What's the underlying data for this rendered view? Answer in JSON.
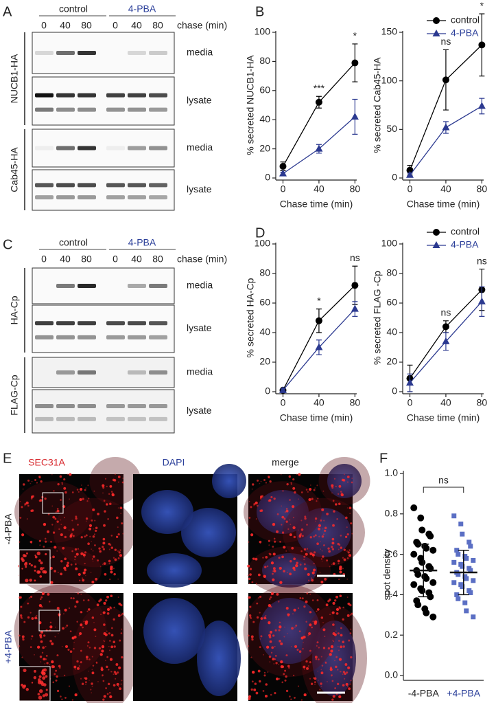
{
  "figure": {
    "panel_letters": [
      "A",
      "B",
      "C",
      "D",
      "E",
      "F"
    ]
  },
  "blots": [
    {
      "conditions": [
        "control",
        "4-PBA"
      ],
      "timepoints": [
        "0",
        "40",
        "80",
        "0",
        "40",
        "80"
      ],
      "time_label": "chase (min)",
      "proteins": [
        {
          "name": "NUCB1-HA",
          "rows": [
            "media",
            "lysate"
          ]
        },
        {
          "name": "Cab45-HA",
          "rows": [
            "media",
            "lysate"
          ]
        }
      ]
    },
    {
      "conditions": [
        "control",
        "4-PBA"
      ],
      "timepoints": [
        "0",
        "40",
        "80",
        "0",
        "40",
        "80"
      ],
      "time_label": "chase (min)",
      "proteins": [
        {
          "name": "HA-Cp",
          "rows": [
            "media",
            "lysate"
          ]
        },
        {
          "name": "FLAG-Cp",
          "rows": [
            "media",
            "lysate"
          ]
        }
      ]
    }
  ],
  "microscopy": {
    "channels": [
      "SEC31A",
      "DAPI",
      "merge"
    ],
    "conditions": [
      "-4-PBA",
      "+4-PBA"
    ]
  },
  "chart_data": [
    {
      "type": "line",
      "ylabel": "% secreted NUCB1-HA",
      "xlabel": "Chase time (min)",
      "x": [
        0,
        40,
        80
      ],
      "xlim": [
        -8,
        82
      ],
      "xticks": [
        0,
        40,
        80
      ],
      "ylim": [
        0,
        100
      ],
      "yticks": [
        0,
        20,
        40,
        60,
        80,
        100
      ],
      "series": [
        {
          "color": "#000000",
          "marker": "circle",
          "values": [
            8,
            52,
            79
          ],
          "errors": [
            3,
            4,
            13
          ]
        },
        {
          "color": "#2b3990",
          "marker": "triangle",
          "values": [
            3,
            20,
            42
          ],
          "errors": [
            1,
            3,
            12
          ]
        }
      ],
      "annotations": [
        {
          "x": 40,
          "text": "***"
        },
        {
          "x": 80,
          "text": "*"
        }
      ]
    },
    {
      "type": "line",
      "ylabel": "% secreted Cab45-HA",
      "xlabel": "Chase time (min)",
      "x": [
        0,
        40,
        80
      ],
      "xlim": [
        -8,
        82
      ],
      "xticks": [
        0,
        40,
        80
      ],
      "ylim": [
        0,
        150
      ],
      "yticks": [
        0,
        50,
        100,
        150
      ],
      "legend": "top-right",
      "series": [
        {
          "name": "control",
          "color": "#000000",
          "marker": "circle",
          "values": [
            8,
            101,
            137
          ],
          "errors": [
            5,
            31,
            32
          ]
        },
        {
          "name": "4-PBA",
          "color": "#2b3990",
          "marker": "triangle",
          "values": [
            3,
            52,
            74
          ],
          "errors": [
            2,
            6,
            8
          ]
        }
      ],
      "annotations": [
        {
          "x": 40,
          "text": "ns"
        },
        {
          "x": 80,
          "text": "*"
        }
      ]
    },
    {
      "type": "line",
      "ylabel": "% secreted HA-Cp",
      "xlabel": "Chase time (min)",
      "x": [
        0,
        40,
        80
      ],
      "xlim": [
        -8,
        82
      ],
      "xticks": [
        0,
        40,
        80
      ],
      "ylim": [
        0,
        100
      ],
      "yticks": [
        0,
        20,
        40,
        60,
        80,
        100
      ],
      "series": [
        {
          "color": "#000000",
          "marker": "circle",
          "values": [
            1,
            48,
            72
          ],
          "errors": [
            1,
            8,
            13
          ]
        },
        {
          "color": "#2b3990",
          "marker": "triangle",
          "values": [
            1,
            30,
            56
          ],
          "errors": [
            1,
            5,
            5
          ]
        }
      ],
      "annotations": [
        {
          "x": 40,
          "text": "*"
        },
        {
          "x": 80,
          "text": "ns"
        }
      ]
    },
    {
      "type": "line",
      "ylabel": "% secreted FLAG -Cp",
      "xlabel": "Chase time (min)",
      "x": [
        0,
        40,
        80
      ],
      "xlim": [
        -8,
        82
      ],
      "xticks": [
        0,
        40,
        80
      ],
      "ylim": [
        0,
        100
      ],
      "yticks": [
        0,
        20,
        40,
        60,
        80,
        100
      ],
      "legend": "top-right",
      "series": [
        {
          "name": "control",
          "color": "#000000",
          "marker": "circle",
          "values": [
            9,
            44,
            69
          ],
          "errors": [
            9,
            4,
            14
          ]
        },
        {
          "name": "4-PBA",
          "color": "#2b3990",
          "marker": "triangle",
          "values": [
            6,
            34,
            61
          ],
          "errors": [
            6,
            6,
            10
          ]
        }
      ],
      "annotations": [
        {
          "x": 40,
          "text": "ns"
        },
        {
          "x": 80,
          "text": "ns"
        }
      ]
    },
    {
      "type": "strip",
      "ylabel": "spot density",
      "categories": [
        "-4-PBA",
        "+4-PBA"
      ],
      "ylim": [
        0,
        1
      ],
      "yticks": [
        {
          "value": 0,
          "label": "0.0"
        },
        0.2,
        0.4,
        0.6,
        0.8,
        {
          "value": 1,
          "label": "1.0"
        }
      ],
      "series": [
        {
          "color": "#000000",
          "marker": "circle",
          "mean": 0.52,
          "sd": 0.13,
          "values": [
            0.83,
            0.78,
            0.72,
            0.7,
            0.69,
            0.66,
            0.65,
            0.64,
            0.63,
            0.62,
            0.6,
            0.58,
            0.56,
            0.54,
            0.53,
            0.52,
            0.5,
            0.49,
            0.48,
            0.46,
            0.45,
            0.43,
            0.42,
            0.41,
            0.39,
            0.37,
            0.35,
            0.33,
            0.31,
            0.29
          ]
        },
        {
          "color": "#5b6fc4",
          "marker": "square",
          "mean": 0.51,
          "sd": 0.11,
          "values": [
            0.79,
            0.75,
            0.7,
            0.66,
            0.64,
            0.62,
            0.6,
            0.59,
            0.58,
            0.57,
            0.56,
            0.55,
            0.54,
            0.53,
            0.52,
            0.51,
            0.5,
            0.49,
            0.48,
            0.47,
            0.46,
            0.45,
            0.44,
            0.42,
            0.41,
            0.4,
            0.38,
            0.36,
            0.32,
            0.29
          ]
        }
      ],
      "annotations": [
        {
          "text": "ns"
        }
      ]
    }
  ]
}
